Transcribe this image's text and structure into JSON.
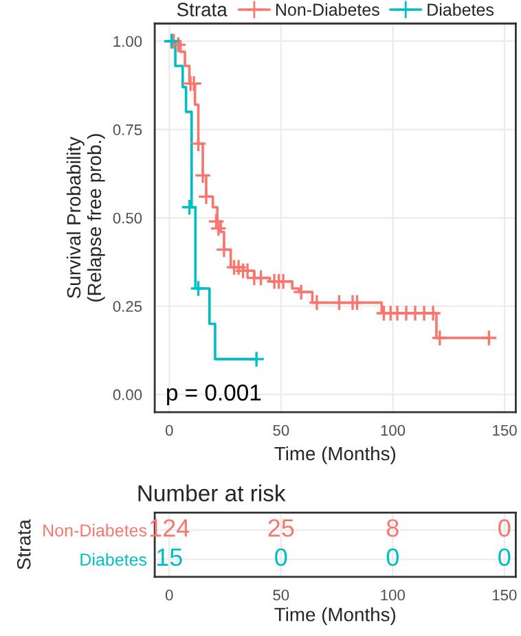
{
  "chart_data": [
    {
      "type": "step",
      "ylabel": "Survival Probability\n(Relapse free prob.)",
      "xlabel": "Time (Months)",
      "legend_title": "Strata",
      "legend": "top",
      "xlim": [
        -6.5,
        155
      ],
      "ylim": [
        -0.05,
        1.05
      ],
      "xticks": [
        0,
        50,
        100,
        150
      ],
      "yticks": [
        {
          "value": 0,
          "label": "0.00"
        },
        {
          "value": 0.25,
          "label": "0.25"
        },
        {
          "value": 0.5,
          "label": "0.50"
        },
        {
          "value": 0.75,
          "label": "0.75"
        },
        {
          "value": 1,
          "label": "1.00"
        }
      ],
      "grid": true,
      "annotations": [
        "p = 0.001"
      ],
      "series": [
        {
          "name": "Non-Diabetes",
          "color": "#f8766d",
          "marker": "none",
          "x": [
            0,
            5,
            7,
            9,
            11.5,
            13,
            15,
            16.5,
            19.5,
            21.5,
            23,
            24.5,
            27.5,
            33,
            38,
            45,
            55,
            58,
            64,
            95,
            119.5,
            143
          ],
          "values": [
            1.0,
            0.97,
            0.93,
            0.88,
            0.82,
            0.71,
            0.62,
            0.56,
            0.53,
            0.49,
            0.46,
            0.41,
            0.36,
            0.35,
            0.33,
            0.32,
            0.3,
            0.29,
            0.26,
            0.23,
            0.16,
            0.16
          ]
        },
        {
          "name": "Diabetes",
          "color": "#00bfc4",
          "marker": "none",
          "x": [
            0,
            2.7,
            6,
            7.5,
            10,
            11.7,
            18,
            20.5,
            39
          ],
          "values": [
            1.0,
            0.93,
            0.87,
            0.8,
            0.53,
            0.3,
            0.2,
            0.1,
            0.1
          ]
        },
        {
          "type": "scatter",
          "color": "#f8766d",
          "marker": "cross",
          "x": [
            2,
            4,
            9.5,
            11,
            13,
            15,
            16.5,
            21,
            22,
            24.5,
            29,
            31,
            33,
            35,
            38,
            41,
            47,
            49,
            51,
            59,
            66,
            76,
            82,
            84,
            96,
            99,
            102,
            106,
            110,
            114,
            118,
            121,
            143
          ],
          "values": [
            1.0,
            0.99,
            0.88,
            0.88,
            0.71,
            0.62,
            0.56,
            0.49,
            0.47,
            0.41,
            0.36,
            0.36,
            0.35,
            0.35,
            0.33,
            0.33,
            0.32,
            0.32,
            0.32,
            0.29,
            0.26,
            0.26,
            0.26,
            0.26,
            0.23,
            0.23,
            0.23,
            0.23,
            0.23,
            0.23,
            0.23,
            0.16,
            0.16
          ]
        },
        {
          "type": "scatter",
          "color": "#00bfc4",
          "marker": "cross",
          "x": [
            1,
            9,
            13,
            39
          ],
          "values": [
            1.0,
            0.53,
            0.3,
            0.1
          ]
        }
      ]
    },
    {
      "type": "heatmap",
      "title": "Number at risk",
      "xlabel": "Time (Months)",
      "ylabel": "Strata",
      "grid": true,
      "data_labels": true,
      "categories": [
        "0",
        "50",
        "100",
        "150"
      ],
      "y_categories": [
        "Non-Diabetes",
        "Diabetes"
      ],
      "colors": [
        "#f8766d",
        "#00bfc4"
      ],
      "cells": [
        [
          124,
          25,
          8,
          0
        ],
        [
          15,
          0,
          0,
          0
        ]
      ]
    }
  ]
}
